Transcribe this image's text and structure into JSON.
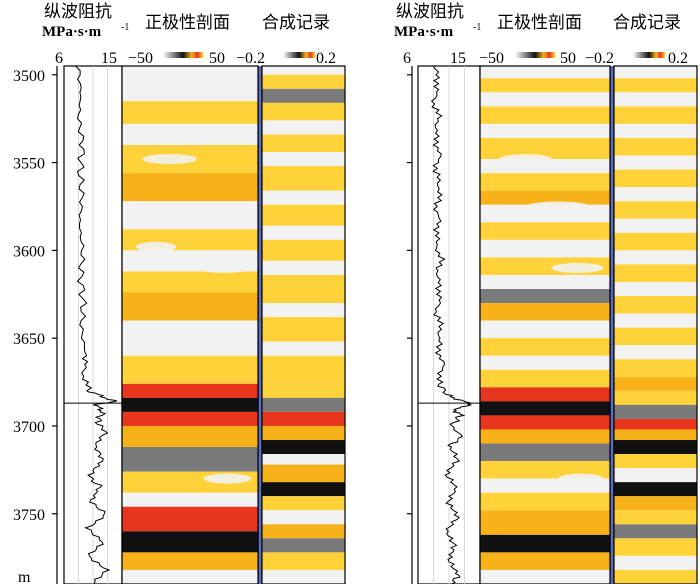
{
  "chart_data": {
    "type": "seismic-well-tie",
    "y_axis": {
      "unit": "m",
      "ylim": [
        3495,
        3790
      ],
      "ticks": [
        3500,
        3550,
        3600,
        3650,
        3700,
        3750
      ]
    },
    "headers": {
      "impedance_title": "纵波阻抗",
      "impedance_unit": "MPa·s·m",
      "impedance_unit_exp": "-1",
      "section_title": "正极性剖面",
      "synthetic_title": "合成记录"
    },
    "impedance_axis": {
      "min": 6,
      "max": 15,
      "tick_labels": [
        "6",
        "15"
      ]
    },
    "section_scale": {
      "min": -50,
      "max": 50,
      "tick_labels": [
        "−50",
        "50"
      ]
    },
    "synthetic_scale": {
      "min": -0.2,
      "max": 0.2,
      "tick_labels": [
        "−0.2",
        "0.2"
      ]
    },
    "colors": {
      "neg_strong": "#111111",
      "neg_mid": "#7a7a7a",
      "zero": "#f2f2f2",
      "pos_weak": "#ffd23a",
      "pos_mid": "#f7b21a",
      "pos_strong": "#e8361e",
      "well_line": "#000000",
      "panel_border": "#000000",
      "separator": "#1f2f7a"
    },
    "panels": [
      {
        "name": "left",
        "impedance_log": [
          [
            3495,
            8.2
          ],
          [
            3510,
            8.6
          ],
          [
            3525,
            8.3
          ],
          [
            3540,
            8.9
          ],
          [
            3555,
            8.5
          ],
          [
            3570,
            8.8
          ],
          [
            3585,
            8.4
          ],
          [
            3600,
            8.9
          ],
          [
            3615,
            8.6
          ],
          [
            3630,
            9.0
          ],
          [
            3645,
            8.7
          ],
          [
            3660,
            9.4
          ],
          [
            3670,
            9.0
          ],
          [
            3680,
            9.8
          ],
          [
            3684,
            12.5
          ],
          [
            3686,
            13.8
          ],
          [
            3688,
            11.0
          ],
          [
            3692,
            12.0
          ],
          [
            3698,
            11.2
          ],
          [
            3704,
            12.6
          ],
          [
            3712,
            10.6
          ],
          [
            3720,
            12.2
          ],
          [
            3728,
            9.8
          ],
          [
            3735,
            11.6
          ],
          [
            3742,
            10.2
          ],
          [
            3750,
            12.3
          ],
          [
            3758,
            9.9
          ],
          [
            3766,
            11.8
          ],
          [
            3774,
            10.0
          ],
          [
            3782,
            12.4
          ],
          [
            3790,
            10.6
          ]
        ],
        "section_bands": [
          [
            3495,
            3505,
            "zero"
          ],
          [
            3505,
            3515,
            "zero"
          ],
          [
            3515,
            3528,
            "pos_weak"
          ],
          [
            3528,
            3540,
            "zero"
          ],
          [
            3540,
            3556,
            "pos_weak"
          ],
          [
            3556,
            3572,
            "pos_mid"
          ],
          [
            3572,
            3588,
            "zero"
          ],
          [
            3588,
            3600,
            "pos_weak"
          ],
          [
            3600,
            3612,
            "zero"
          ],
          [
            3612,
            3624,
            "pos_weak"
          ],
          [
            3624,
            3640,
            "pos_mid"
          ],
          [
            3640,
            3660,
            "zero"
          ],
          [
            3660,
            3676,
            "pos_weak"
          ],
          [
            3676,
            3684,
            "pos_strong"
          ],
          [
            3684,
            3692,
            "neg_strong"
          ],
          [
            3692,
            3700,
            "pos_strong"
          ],
          [
            3700,
            3712,
            "pos_mid"
          ],
          [
            3712,
            3726,
            "neg_mid"
          ],
          [
            3726,
            3738,
            "pos_weak"
          ],
          [
            3738,
            3746,
            "zero"
          ],
          [
            3746,
            3760,
            "pos_strong"
          ],
          [
            3760,
            3772,
            "neg_strong"
          ],
          [
            3772,
            3782,
            "pos_mid"
          ],
          [
            3782,
            3790,
            "zero"
          ]
        ],
        "synthetic_bands": [
          [
            3495,
            3500,
            "zero"
          ],
          [
            3500,
            3508,
            "pos_weak"
          ],
          [
            3508,
            3516,
            "neg_mid"
          ],
          [
            3516,
            3526,
            "pos_weak"
          ],
          [
            3526,
            3534,
            "zero"
          ],
          [
            3534,
            3544,
            "pos_weak"
          ],
          [
            3544,
            3552,
            "zero"
          ],
          [
            3552,
            3566,
            "pos_weak"
          ],
          [
            3566,
            3574,
            "zero"
          ],
          [
            3574,
            3586,
            "pos_weak"
          ],
          [
            3586,
            3594,
            "zero"
          ],
          [
            3594,
            3606,
            "pos_weak"
          ],
          [
            3606,
            3614,
            "zero"
          ],
          [
            3614,
            3630,
            "pos_weak"
          ],
          [
            3630,
            3638,
            "zero"
          ],
          [
            3638,
            3652,
            "pos_weak"
          ],
          [
            3652,
            3660,
            "zero"
          ],
          [
            3660,
            3676,
            "pos_weak"
          ],
          [
            3676,
            3684,
            "pos_weak"
          ],
          [
            3684,
            3692,
            "neg_mid"
          ],
          [
            3692,
            3700,
            "pos_strong"
          ],
          [
            3700,
            3708,
            "pos_mid"
          ],
          [
            3708,
            3716,
            "neg_strong"
          ],
          [
            3716,
            3722,
            "zero"
          ],
          [
            3722,
            3732,
            "pos_mid"
          ],
          [
            3732,
            3740,
            "neg_strong"
          ],
          [
            3740,
            3748,
            "pos_weak"
          ],
          [
            3748,
            3756,
            "zero"
          ],
          [
            3756,
            3764,
            "pos_mid"
          ],
          [
            3764,
            3772,
            "neg_mid"
          ],
          [
            3772,
            3782,
            "pos_weak"
          ],
          [
            3782,
            3790,
            "zero"
          ]
        ]
      },
      {
        "name": "right",
        "impedance_log": [
          [
            3495,
            8.4
          ],
          [
            3505,
            8.9
          ],
          [
            3515,
            8.3
          ],
          [
            3525,
            9.0
          ],
          [
            3535,
            8.5
          ],
          [
            3545,
            9.1
          ],
          [
            3555,
            8.6
          ],
          [
            3565,
            9.2
          ],
          [
            3575,
            8.7
          ],
          [
            3585,
            9.0
          ],
          [
            3595,
            8.6
          ],
          [
            3605,
            9.3
          ],
          [
            3615,
            8.8
          ],
          [
            3625,
            9.2
          ],
          [
            3635,
            8.7
          ],
          [
            3645,
            9.3
          ],
          [
            3655,
            8.9
          ],
          [
            3665,
            9.6
          ],
          [
            3675,
            9.1
          ],
          [
            3682,
            10.0
          ],
          [
            3686,
            12.6
          ],
          [
            3688,
            14.0
          ],
          [
            3690,
            11.2
          ],
          [
            3694,
            12.2
          ],
          [
            3700,
            10.8
          ],
          [
            3706,
            12.4
          ],
          [
            3712,
            10.4
          ],
          [
            3720,
            11.9
          ],
          [
            3728,
            9.9
          ],
          [
            3736,
            11.8
          ],
          [
            3744,
            10.1
          ],
          [
            3752,
            12.1
          ],
          [
            3760,
            9.8
          ],
          [
            3768,
            11.6
          ],
          [
            3776,
            10.2
          ],
          [
            3784,
            12.0
          ],
          [
            3790,
            10.9
          ]
        ],
        "section_bands": [
          [
            3495,
            3502,
            "zero"
          ],
          [
            3502,
            3510,
            "pos_weak"
          ],
          [
            3510,
            3518,
            "zero"
          ],
          [
            3518,
            3528,
            "pos_weak"
          ],
          [
            3528,
            3536,
            "zero"
          ],
          [
            3536,
            3548,
            "pos_weak"
          ],
          [
            3548,
            3556,
            "zero"
          ],
          [
            3556,
            3566,
            "pos_weak"
          ],
          [
            3566,
            3574,
            "pos_mid"
          ],
          [
            3574,
            3584,
            "zero"
          ],
          [
            3584,
            3594,
            "pos_weak"
          ],
          [
            3594,
            3604,
            "zero"
          ],
          [
            3604,
            3614,
            "pos_weak"
          ],
          [
            3614,
            3622,
            "zero"
          ],
          [
            3622,
            3630,
            "neg_mid"
          ],
          [
            3630,
            3640,
            "pos_mid"
          ],
          [
            3640,
            3650,
            "zero"
          ],
          [
            3650,
            3660,
            "pos_weak"
          ],
          [
            3660,
            3668,
            "zero"
          ],
          [
            3668,
            3678,
            "pos_weak"
          ],
          [
            3678,
            3686,
            "pos_strong"
          ],
          [
            3686,
            3694,
            "neg_strong"
          ],
          [
            3694,
            3702,
            "pos_strong"
          ],
          [
            3702,
            3710,
            "pos_mid"
          ],
          [
            3710,
            3720,
            "neg_mid"
          ],
          [
            3720,
            3730,
            "pos_weak"
          ],
          [
            3730,
            3738,
            "zero"
          ],
          [
            3738,
            3748,
            "pos_weak"
          ],
          [
            3748,
            3762,
            "pos_mid"
          ],
          [
            3762,
            3772,
            "neg_strong"
          ],
          [
            3772,
            3782,
            "pos_mid"
          ],
          [
            3782,
            3790,
            "zero"
          ]
        ],
        "synthetic_bands": [
          [
            3495,
            3502,
            "zero"
          ],
          [
            3502,
            3510,
            "pos_weak"
          ],
          [
            3510,
            3518,
            "zero"
          ],
          [
            3518,
            3528,
            "pos_weak"
          ],
          [
            3528,
            3536,
            "zero"
          ],
          [
            3536,
            3546,
            "pos_weak"
          ],
          [
            3546,
            3554,
            "zero"
          ],
          [
            3554,
            3564,
            "pos_weak"
          ],
          [
            3564,
            3572,
            "zero"
          ],
          [
            3572,
            3582,
            "pos_weak"
          ],
          [
            3582,
            3590,
            "zero"
          ],
          [
            3590,
            3600,
            "pos_weak"
          ],
          [
            3600,
            3608,
            "zero"
          ],
          [
            3608,
            3618,
            "pos_weak"
          ],
          [
            3618,
            3626,
            "zero"
          ],
          [
            3626,
            3636,
            "pos_weak"
          ],
          [
            3636,
            3644,
            "zero"
          ],
          [
            3644,
            3654,
            "pos_weak"
          ],
          [
            3654,
            3662,
            "zero"
          ],
          [
            3662,
            3672,
            "pos_weak"
          ],
          [
            3672,
            3680,
            "pos_mid"
          ],
          [
            3680,
            3688,
            "pos_weak"
          ],
          [
            3688,
            3696,
            "neg_mid"
          ],
          [
            3696,
            3702,
            "pos_strong"
          ],
          [
            3702,
            3708,
            "pos_mid"
          ],
          [
            3708,
            3716,
            "neg_strong"
          ],
          [
            3716,
            3724,
            "pos_weak"
          ],
          [
            3724,
            3732,
            "zero"
          ],
          [
            3732,
            3740,
            "neg_strong"
          ],
          [
            3740,
            3748,
            "pos_mid"
          ],
          [
            3748,
            3756,
            "pos_weak"
          ],
          [
            3756,
            3764,
            "neg_mid"
          ],
          [
            3764,
            3774,
            "pos_weak"
          ],
          [
            3774,
            3782,
            "zero"
          ],
          [
            3782,
            3790,
            "pos_weak"
          ]
        ]
      }
    ]
  }
}
